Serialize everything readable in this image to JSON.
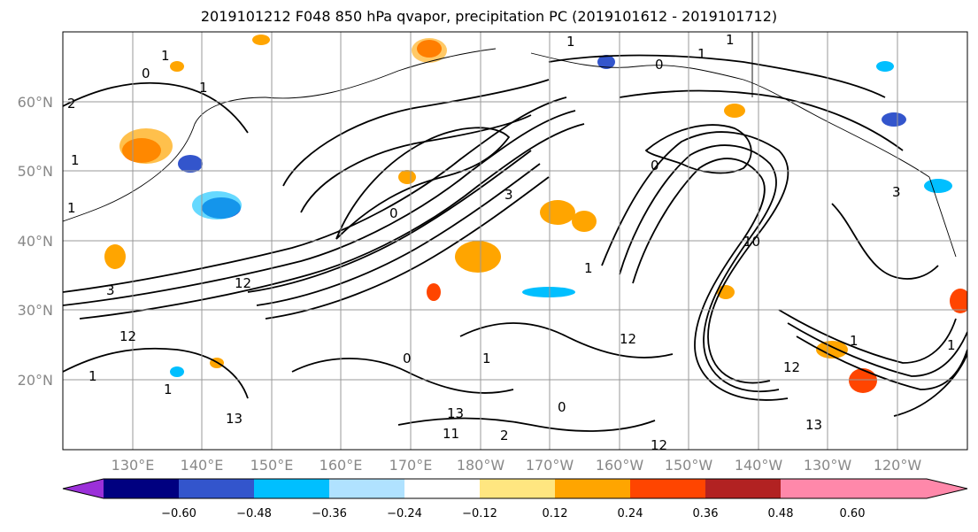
{
  "title": "2019101212 F048 850 hPa qvapor, precipitation PC (2019101612 - 2019101712)",
  "map": {
    "lat_labels": [
      "60°N",
      "50°N",
      "40°N",
      "30°N",
      "20°N"
    ],
    "lon_labels": [
      "130°E",
      "140°E",
      "150°E",
      "160°E",
      "170°E",
      "180°W",
      "170°W",
      "160°W",
      "150°W",
      "140°W",
      "130°W",
      "120°W"
    ],
    "gridline_color": "#999999",
    "contour_labels": [
      "1",
      "1",
      "0",
      "1",
      "1",
      "2",
      "1",
      "0",
      "1",
      "0",
      "1",
      "3",
      "12",
      "1",
      "12",
      "13",
      "13",
      "12",
      "12",
      "2",
      "12",
      "10",
      "0",
      "1",
      "1",
      "0",
      "3",
      "1",
      "1",
      "13",
      "11",
      "0",
      "3",
      "1"
    ]
  },
  "legend": {
    "ticks": [
      "−0.60",
      "−0.48",
      "−0.36",
      "−0.24",
      "−0.12",
      "0.12",
      "0.24",
      "0.36",
      "0.48",
      "0.60"
    ],
    "colors": [
      "#9b30d9",
      "#000080",
      "#3355cc",
      "#00bfff",
      "#b0e2ff",
      "#ffffff",
      "#ffe680",
      "#ffa500",
      "#ff4500",
      "#b22222",
      "#ff88aa"
    ]
  },
  "icons": [
    "colorbar-min-arrow",
    "colorbar-max-arrow"
  ]
}
